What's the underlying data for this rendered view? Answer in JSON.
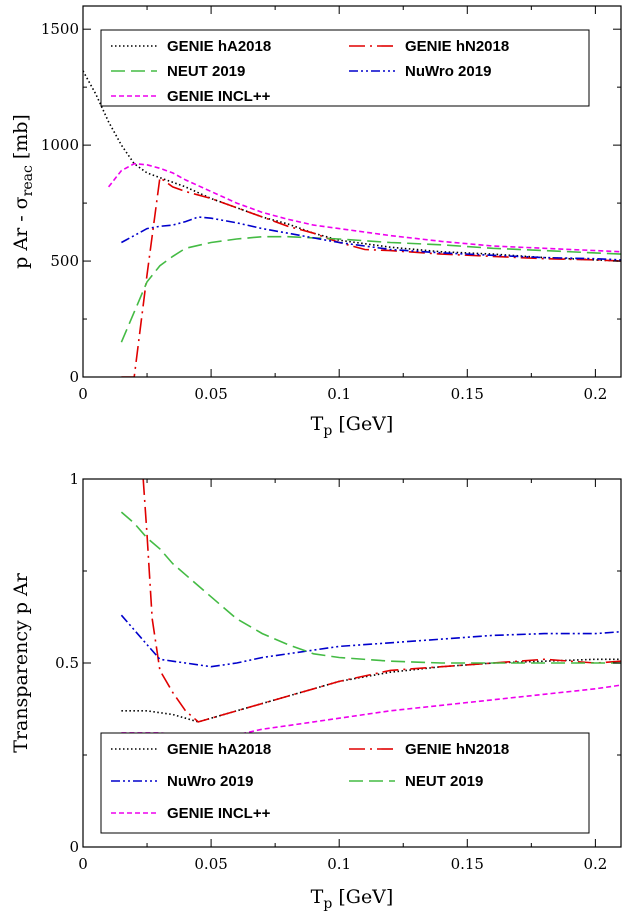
{
  "chart_data": [
    {
      "type": "line",
      "xlabel": "T",
      "xlabel_sub": "p",
      "xlabel_unit": " [GeV]",
      "ylabel": "p Ar - σ",
      "ylabel_sub": "reac",
      "ylabel_unit": " [mb]",
      "xlim": [
        0,
        0.21
      ],
      "ylim": [
        0,
        1600
      ],
      "x_ticks": [
        0,
        0.05,
        0.1,
        0.15,
        0.2
      ],
      "x_tick_labels": [
        "0",
        "0.05",
        "0.1",
        "0.15",
        "0.2"
      ],
      "y_ticks": [
        0,
        500,
        1000,
        1500
      ],
      "y_tick_labels": [
        "0",
        "500",
        "1000",
        "1500"
      ],
      "grid": false,
      "legend_placement": "top",
      "series": [
        {
          "name": "GENIE hA2018",
          "color": "#000000",
          "dash": "dot",
          "x": [
            0.0,
            0.005,
            0.01,
            0.015,
            0.02,
            0.025,
            0.03,
            0.04,
            0.05,
            0.06,
            0.07,
            0.08,
            0.09,
            0.1,
            0.12,
            0.14,
            0.16,
            0.18,
            0.2,
            0.21
          ],
          "y": [
            1320,
            1220,
            1100,
            1000,
            920,
            880,
            860,
            820,
            770,
            730,
            690,
            660,
            620,
            590,
            560,
            540,
            530,
            515,
            505,
            500
          ]
        },
        {
          "name": "GENIE hN2018",
          "color": "#e00000",
          "dash": "dashdot",
          "x": [
            0.015,
            0.02,
            0.025,
            0.03,
            0.035,
            0.04,
            0.05,
            0.06,
            0.07,
            0.08,
            0.09,
            0.1,
            0.11,
            0.12,
            0.14,
            0.16,
            0.18,
            0.2,
            0.21
          ],
          "y": [
            0,
            0,
            440,
            860,
            820,
            800,
            770,
            730,
            690,
            650,
            620,
            580,
            550,
            545,
            530,
            520,
            510,
            505,
            500
          ]
        },
        {
          "name": "NEUT 2019",
          "color": "#44bb44",
          "dash": "dash",
          "x": [
            0.015,
            0.02,
            0.025,
            0.03,
            0.035,
            0.04,
            0.05,
            0.06,
            0.07,
            0.08,
            0.09,
            0.1,
            0.12,
            0.14,
            0.16,
            0.18,
            0.2,
            0.21
          ],
          "y": [
            150,
            280,
            410,
            480,
            520,
            555,
            580,
            595,
            605,
            605,
            600,
            595,
            580,
            570,
            555,
            545,
            535,
            530
          ]
        },
        {
          "name": "NuWro 2019",
          "color": "#0000cc",
          "dash": "dashdotdot",
          "x": [
            0.015,
            0.02,
            0.025,
            0.03,
            0.035,
            0.04,
            0.045,
            0.05,
            0.06,
            0.07,
            0.08,
            0.09,
            0.1,
            0.12,
            0.14,
            0.16,
            0.18,
            0.2,
            0.21
          ],
          "y": [
            580,
            610,
            640,
            650,
            655,
            670,
            690,
            685,
            665,
            640,
            620,
            600,
            580,
            550,
            535,
            525,
            515,
            510,
            505
          ]
        },
        {
          "name": "GENIE INCL++",
          "color": "#ee00ee",
          "dash": "shortdash",
          "x": [
            0.01,
            0.015,
            0.02,
            0.025,
            0.03,
            0.035,
            0.04,
            0.05,
            0.06,
            0.07,
            0.08,
            0.09,
            0.1,
            0.12,
            0.14,
            0.16,
            0.18,
            0.2,
            0.21
          ],
          "y": [
            820,
            890,
            920,
            915,
            900,
            880,
            850,
            800,
            750,
            710,
            680,
            655,
            640,
            610,
            585,
            565,
            555,
            545,
            540
          ]
        }
      ]
    },
    {
      "type": "line",
      "xlabel": "T",
      "xlabel_sub": "p",
      "xlabel_unit": " [GeV]",
      "ylabel": "Transparency p Ar",
      "xlim": [
        0,
        0.21
      ],
      "ylim": [
        0,
        1
      ],
      "x_ticks": [
        0,
        0.05,
        0.1,
        0.15,
        0.2
      ],
      "x_tick_labels": [
        "0",
        "0.05",
        "0.1",
        "0.15",
        "0.2"
      ],
      "y_ticks": [
        0,
        0.5,
        1
      ],
      "y_tick_labels": [
        "0",
        "0.5",
        "1"
      ],
      "grid": false,
      "legend_placement": "bottom",
      "series": [
        {
          "name": "GENIE hA2018",
          "color": "#000000",
          "dash": "dot",
          "x": [
            0.015,
            0.02,
            0.025,
            0.03,
            0.035,
            0.04,
            0.045,
            0.05,
            0.06,
            0.07,
            0.08,
            0.09,
            0.1,
            0.12,
            0.14,
            0.16,
            0.18,
            0.2,
            0.21
          ],
          "y": [
            0.37,
            0.37,
            0.37,
            0.365,
            0.36,
            0.35,
            0.34,
            0.35,
            0.37,
            0.39,
            0.41,
            0.43,
            0.45,
            0.475,
            0.49,
            0.5,
            0.505,
            0.51,
            0.51
          ]
        },
        {
          "name": "GENIE hN2018",
          "color": "#e00000",
          "dash": "dashdot",
          "x": [
            0.0235,
            0.025,
            0.027,
            0.03,
            0.035,
            0.04,
            0.045,
            0.05,
            0.06,
            0.07,
            0.08,
            0.09,
            0.1,
            0.12,
            0.14,
            0.16,
            0.18,
            0.2,
            0.21
          ],
          "y": [
            1.0,
            0.85,
            0.62,
            0.48,
            0.42,
            0.37,
            0.34,
            0.35,
            0.37,
            0.39,
            0.41,
            0.43,
            0.45,
            0.48,
            0.49,
            0.5,
            0.51,
            0.5,
            0.505
          ]
        },
        {
          "name": "NuWro 2019",
          "color": "#0000cc",
          "dash": "dashdotdot",
          "x": [
            0.015,
            0.02,
            0.025,
            0.03,
            0.035,
            0.04,
            0.05,
            0.06,
            0.07,
            0.08,
            0.09,
            0.1,
            0.12,
            0.14,
            0.16,
            0.18,
            0.2,
            0.21
          ],
          "y": [
            0.63,
            0.59,
            0.55,
            0.51,
            0.505,
            0.5,
            0.49,
            0.5,
            0.515,
            0.525,
            0.535,
            0.545,
            0.555,
            0.565,
            0.575,
            0.58,
            0.58,
            0.585
          ]
        },
        {
          "name": "NEUT 2019",
          "color": "#44bb44",
          "dash": "dash",
          "x": [
            0.015,
            0.02,
            0.025,
            0.03,
            0.035,
            0.04,
            0.05,
            0.06,
            0.07,
            0.08,
            0.09,
            0.1,
            0.12,
            0.14,
            0.16,
            0.18,
            0.2,
            0.21
          ],
          "y": [
            0.91,
            0.88,
            0.84,
            0.81,
            0.77,
            0.74,
            0.68,
            0.62,
            0.58,
            0.55,
            0.525,
            0.515,
            0.505,
            0.5,
            0.5,
            0.5,
            0.5,
            0.5
          ]
        },
        {
          "name": "GENIE INCL++",
          "color": "#ee00ee",
          "dash": "shortdash",
          "x": [
            0.015,
            0.02,
            0.03,
            0.04,
            0.05,
            0.06,
            0.07,
            0.08,
            0.09,
            0.1,
            0.12,
            0.14,
            0.16,
            0.18,
            0.2,
            0.21
          ],
          "y": [
            0.31,
            0.31,
            0.31,
            0.305,
            0.305,
            0.305,
            0.32,
            0.33,
            0.34,
            0.35,
            0.37,
            0.385,
            0.4,
            0.415,
            0.43,
            0.44
          ]
        }
      ]
    }
  ]
}
